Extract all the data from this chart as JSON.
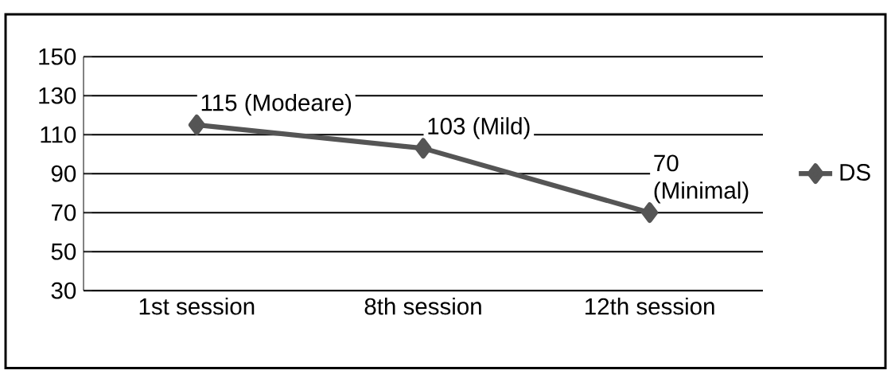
{
  "chart_data": {
    "type": "line",
    "categories": [
      "1st session",
      "8th session",
      "12th session"
    ],
    "series": [
      {
        "name": "DS",
        "color": "#555555",
        "values": [
          115,
          103,
          70
        ]
      }
    ],
    "value_labels": [
      "115 (Modeare)",
      "103 (Mild)",
      "70 (Minimal)"
    ],
    "ylim": [
      30,
      150
    ],
    "yticks": [
      30,
      50,
      70,
      90,
      110,
      130,
      150
    ],
    "grid": "y",
    "legend": "right",
    "marker": "diamond",
    "line_style": "solid"
  }
}
